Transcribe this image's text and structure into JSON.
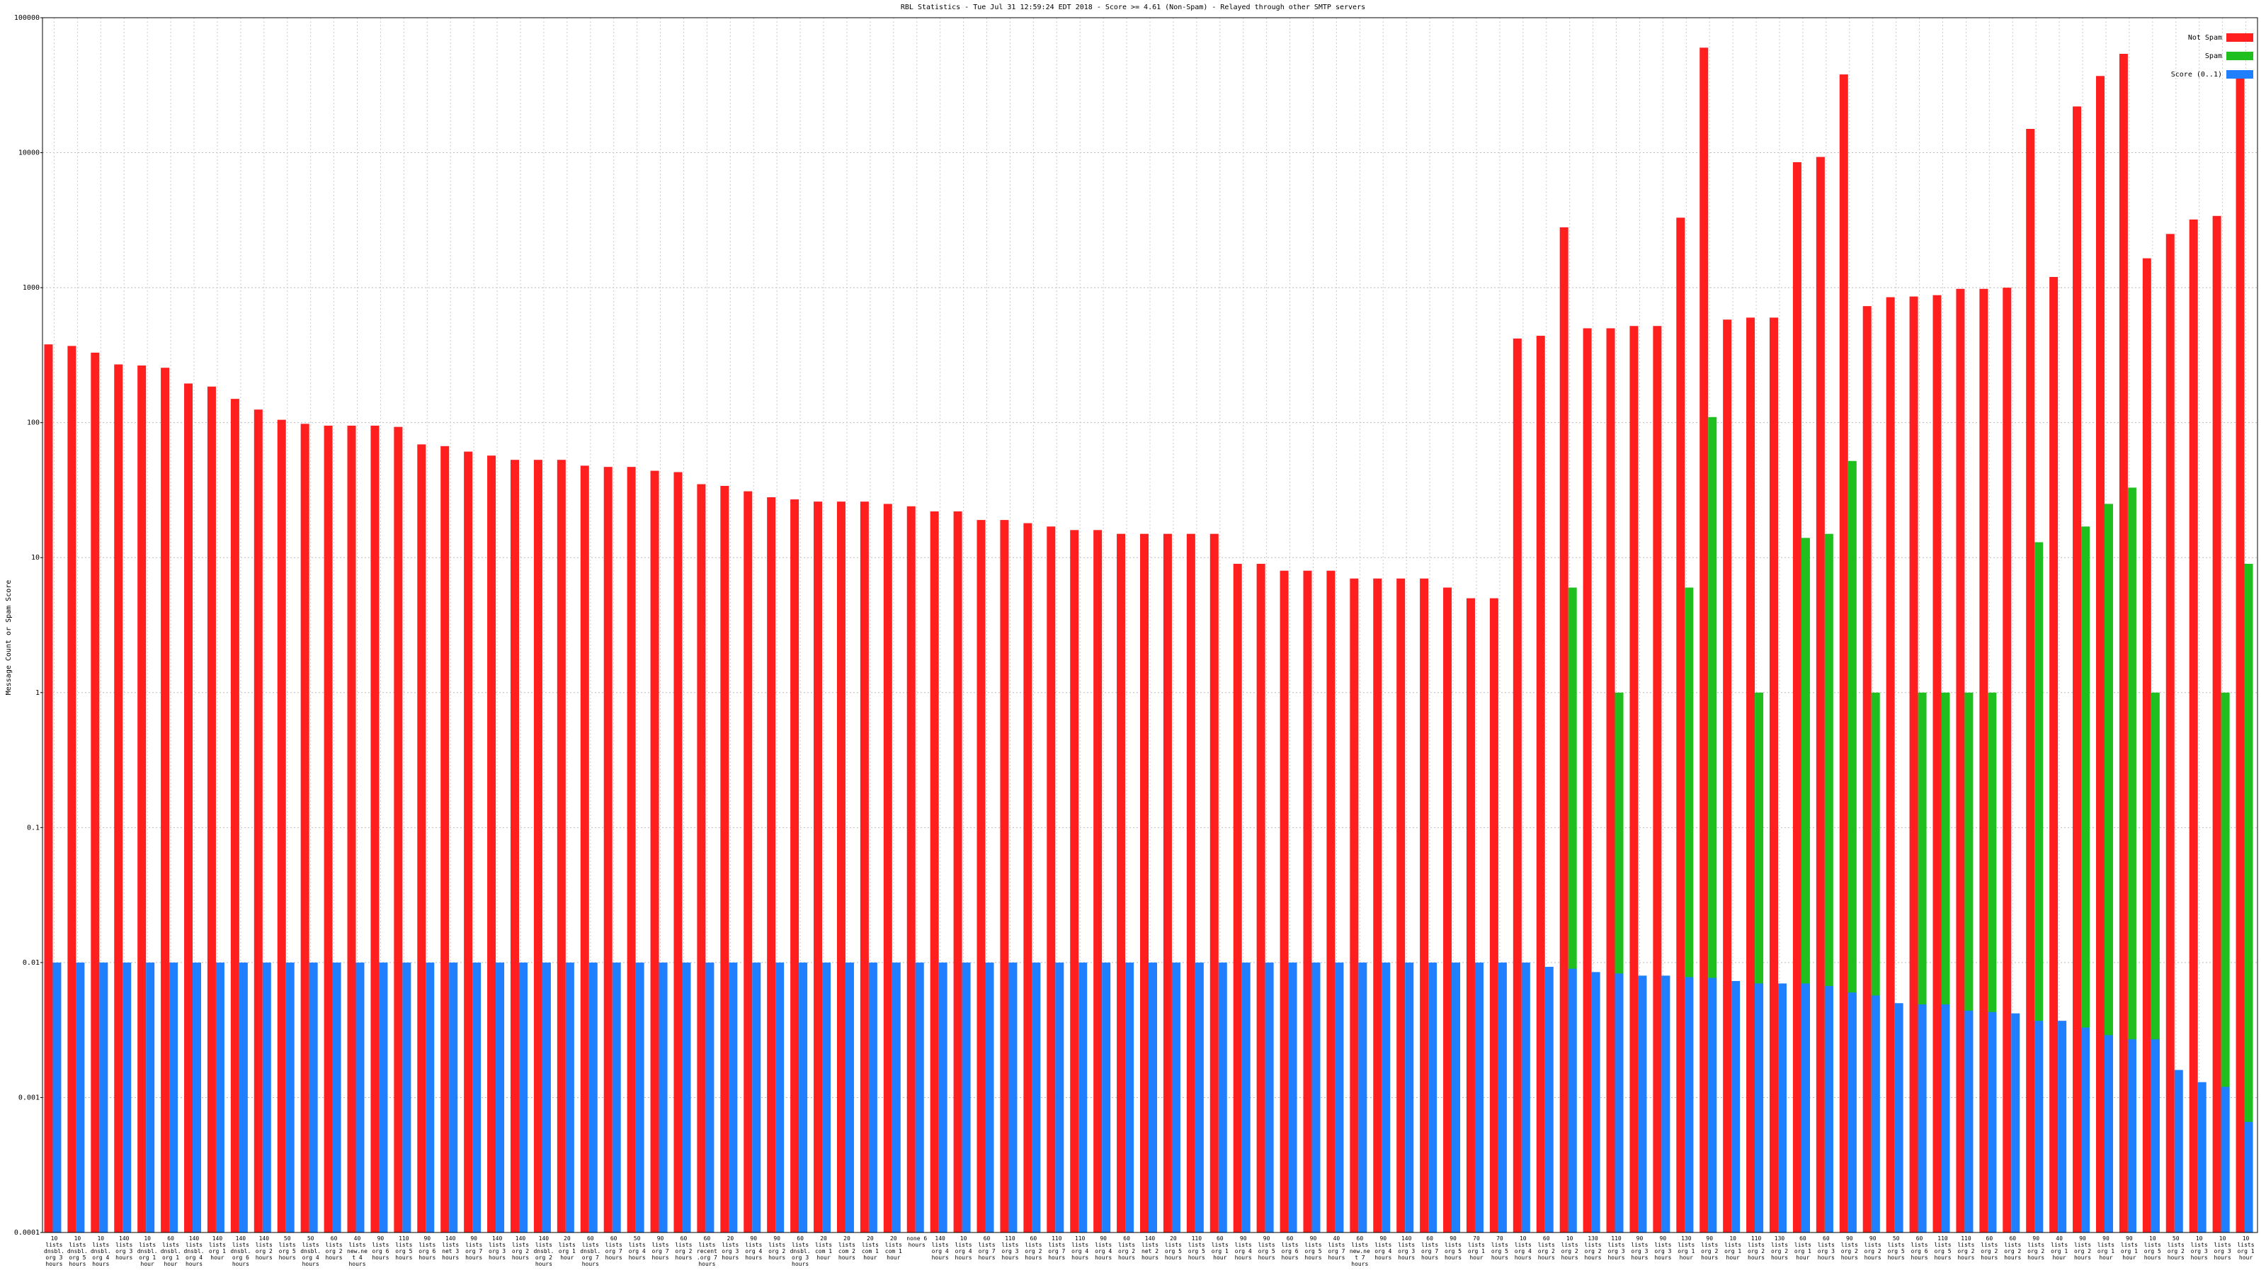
{
  "chart_data": {
    "type": "bar",
    "log_scale": true,
    "grid": true,
    "legend": "top-right",
    "title": "RBL Statistics - Tue Jul 31 12:59:24 EDT 2018 - Score >= 4.61 (Non-Spam) - Relayed through other SMTP servers",
    "y_label": "Message Count or Spam Score",
    "ylim": [
      0.0001,
      100000
    ],
    "yticks": [
      0.0001,
      0.001,
      0.01,
      0.1,
      1,
      10,
      100,
      1000,
      10000,
      100000
    ],
    "categories": [
      "10 lists dnsbl.org 3 hours",
      "10 lists dnsbl.org 5 hours",
      "10 lists dnsbl.org 4 hours",
      "140 lists org 3 hours",
      "10 lists dnsbl.org 1 hour",
      "60 lists dnsbl.org 1 hour",
      "140 lists dnsbl.org 4 hours",
      "140 lists org 1 hour",
      "140 lists dnsbl.org 6 hours",
      "140 lists org 2 hours",
      "50 lists org 5 hours",
      "50 lists dnsbl.org 4 hours",
      "60 lists org 2 hours",
      "40 lists new.net 4 hours",
      "90 lists org 6 hours",
      "110 lists org 5 hours",
      "90 lists org 6 hours",
      "140 lists net 3 hours",
      "90 lists org 7 hours",
      "140 lists org 3 hours",
      "140 lists org 2 hours",
      "140 lists dnsbl.org 2 hours",
      "20 lists org 1 hour",
      "60 lists dnsbl.org 7 hours",
      "60 lists org 7 hours",
      "50 lists org 4 hours",
      "90 lists org 7 hours",
      "60 lists org 2 hours",
      "60 lists recent.org 7 hours",
      "20 lists org 3 hours",
      "90 lists org 4 hours",
      "90 lists org 2 hours",
      "60 lists dnsbl.org 3 hours",
      "20 lists com 1 hour",
      "20 lists com 2 hours",
      "20 lists com 1 hour",
      "20 lists com 1 hour",
      "none 6 hours",
      "140 lists org 4 hours",
      "10 lists org 4 hours",
      "60 lists org 7 hours",
      "110 lists org 3 hours",
      "60 lists org 2 hours",
      "110 lists org 7 hours",
      "110 lists org 4 hours",
      "90 lists org 4 hours",
      "60 lists org 2 hours",
      "140 lists net 2 hours",
      "20 lists org 5 hours",
      "110 lists org 5 hours",
      "60 lists org 1 hour",
      "90 lists org 4 hours",
      "90 lists org 5 hours",
      "60 lists org 6 hours",
      "90 lists org 5 hours",
      "40 lists org 7 hours",
      "60 lists new.net 7 hours",
      "90 lists org 4 hours",
      "140 lists org 3 hours",
      "60 lists org 7 hours",
      "90 lists org 5 hours",
      "70 lists org 1 hour",
      "70 lists org 5 hours",
      "10 lists org 4 hours",
      "60 lists org 2 hours",
      "10 lists org 2 hours",
      "130 lists org 2 hours",
      "110 lists org 3 hours",
      "90 lists org 3 hours",
      "90 lists org 3 hours",
      "130 lists org 1 hour",
      "90 lists org 2 hours",
      "10 lists org 1 hour",
      "110 lists org 2 hours",
      "130 lists org 2 hours",
      "60 lists org 1 hour",
      "60 lists org 3 hours",
      "90 lists org 2 hours",
      "90 lists org 2 hours",
      "50 lists org 5 hours",
      "60 lists org 6 hours",
      "110 lists org 5 hours",
      "110 lists org 2 hours",
      "60 lists org 2 hours",
      "60 lists org 2 hours",
      "90 lists org 2 hours",
      "40 lists org 1 hour",
      "90 lists org 2 hours",
      "90 lists org 1 hour",
      "90 lists org 1 hour",
      "10 lists org 5 hours",
      "50 lists org 2 hours",
      "10 lists org 3 hours",
      "10 lists org 3 hours",
      "10 lists org 1 hour"
    ],
    "series": [
      {
        "name": "Not Spam",
        "color": "#ff1f1f",
        "values": [
          380,
          370,
          330,
          270,
          265,
          255,
          195,
          185,
          150,
          125,
          105,
          98,
          95,
          95,
          95,
          93,
          69,
          67,
          61,
          57,
          53,
          53,
          53,
          48,
          47,
          47,
          44,
          43,
          35,
          34,
          31,
          28,
          27,
          26,
          26,
          26,
          25,
          24,
          22,
          22,
          19,
          19,
          18,
          17,
          16,
          16,
          15,
          15,
          15,
          15,
          15,
          9,
          9,
          8,
          8,
          8,
          7,
          7,
          7,
          7,
          6,
          5,
          5,
          420,
          440,
          2800,
          500,
          500,
          520,
          520,
          3300,
          60000,
          580,
          600,
          600,
          8500,
          9300,
          38000,
          730,
          850,
          860,
          880,
          980,
          980,
          1000,
          15000,
          1200,
          22000,
          37000,
          54000,
          1650,
          2500,
          3200,
          3400,
          40000
        ]
      },
      {
        "name": "Spam",
        "color": "#1fbf1f",
        "values": [
          null,
          null,
          null,
          null,
          null,
          null,
          null,
          null,
          null,
          null,
          null,
          null,
          null,
          null,
          null,
          null,
          null,
          null,
          null,
          null,
          null,
          null,
          null,
          null,
          null,
          null,
          null,
          null,
          null,
          null,
          null,
          null,
          null,
          null,
          null,
          null,
          null,
          null,
          null,
          null,
          null,
          null,
          null,
          null,
          null,
          null,
          null,
          null,
          null,
          null,
          null,
          null,
          null,
          null,
          null,
          null,
          null,
          null,
          null,
          null,
          null,
          null,
          null,
          null,
          null,
          6,
          null,
          1,
          null,
          null,
          6,
          110,
          null,
          1,
          null,
          14,
          15,
          52,
          1,
          null,
          1,
          1,
          1,
          1,
          null,
          13,
          null,
          17,
          25,
          33,
          1,
          null,
          null,
          1,
          9
        ]
      },
      {
        "name": "Score (0..1)",
        "color": "#1f7fff",
        "values": [
          0.01,
          0.01,
          0.01,
          0.01,
          0.01,
          0.01,
          0.01,
          0.01,
          0.01,
          0.01,
          0.01,
          0.01,
          0.01,
          0.01,
          0.01,
          0.01,
          0.01,
          0.01,
          0.01,
          0.01,
          0.01,
          0.01,
          0.01,
          0.01,
          0.01,
          0.01,
          0.01,
          0.01,
          0.01,
          0.01,
          0.01,
          0.01,
          0.01,
          0.01,
          0.01,
          0.01,
          0.01,
          0.01,
          0.01,
          0.01,
          0.01,
          0.01,
          0.01,
          0.01,
          0.01,
          0.01,
          0.01,
          0.01,
          0.01,
          0.01,
          0.01,
          0.01,
          0.01,
          0.01,
          0.01,
          0.01,
          0.01,
          0.01,
          0.01,
          0.01,
          0.01,
          0.01,
          0.01,
          0.01,
          0.0093,
          0.009,
          0.0085,
          0.0083,
          0.008,
          0.008,
          0.0078,
          0.0077,
          0.0073,
          0.007,
          0.007,
          0.007,
          0.0067,
          0.006,
          0.0057,
          0.005,
          0.0049,
          0.0049,
          0.0044,
          0.0043,
          0.0042,
          0.0037,
          0.0037,
          0.0033,
          0.0029,
          0.0027,
          0.0027,
          0.0016,
          0.0013,
          0.0012,
          0.00066
        ]
      }
    ]
  }
}
